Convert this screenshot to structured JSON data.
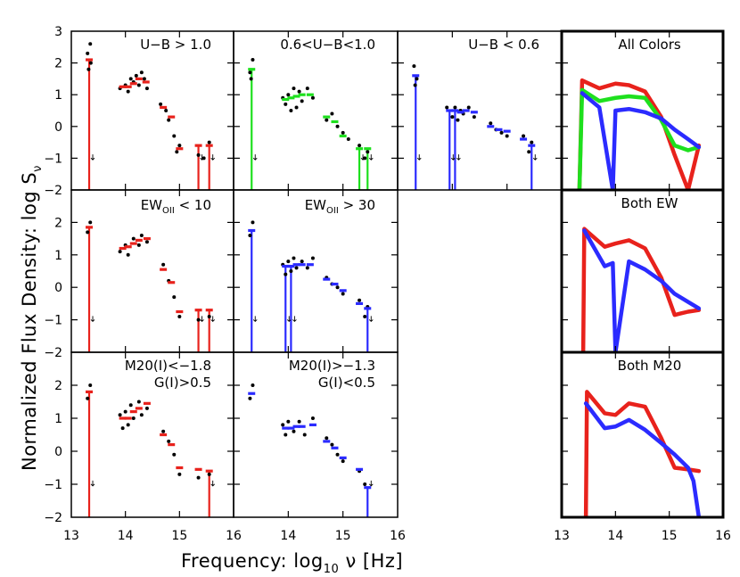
{
  "chart_data": {
    "type": "scatter",
    "x_label_prefix": "Frequency: log",
    "x_label_sub": "10",
    "x_label_mid": " ν ",
    "x_label_unit": "[Hz]",
    "y_label_main": "Normalized Flux Density: log S",
    "y_label_sub": "ν",
    "xlim": [
      13,
      16
    ],
    "ylim": [
      -2,
      3
    ],
    "x_ticks": [
      "13",
      "14",
      "15",
      "16"
    ],
    "y_ticks": [
      "3",
      "2",
      "1",
      "0",
      "−1",
      "−2"
    ],
    "colors": {
      "red": "#e8221c",
      "green": "#1ee01e",
      "blue": "#2b2bff",
      "black": "#000000"
    },
    "panels": [
      {
        "id": "ub-gt-1",
        "title_lines": [
          "U−B > 1.0"
        ],
        "color": "red",
        "sed": [
          [
            13.33,
            2.1
          ],
          [
            13.95,
            1.25
          ],
          [
            14.05,
            1.25
          ],
          [
            14.15,
            1.35
          ],
          [
            14.25,
            1.5
          ],
          [
            14.38,
            1.4
          ],
          [
            14.7,
            0.6
          ],
          [
            14.85,
            0.3
          ],
          [
            15.0,
            -0.7
          ],
          [
            15.35,
            -0.6
          ],
          [
            15.55,
            -0.6
          ]
        ],
        "drops": [
          13.33,
          15.35,
          15.55
        ],
        "dots": [
          [
            13.3,
            2.3
          ],
          [
            13.35,
            2.6
          ],
          [
            13.32,
            1.8
          ],
          [
            13.36,
            2.0
          ],
          [
            13.9,
            1.2
          ],
          [
            14.0,
            1.3
          ],
          [
            14.05,
            1.1
          ],
          [
            14.1,
            1.5
          ],
          [
            14.15,
            1.4
          ],
          [
            14.2,
            1.6
          ],
          [
            14.25,
            1.3
          ],
          [
            14.3,
            1.7
          ],
          [
            14.35,
            1.5
          ],
          [
            14.4,
            1.2
          ],
          [
            14.65,
            0.7
          ],
          [
            14.75,
            0.5
          ],
          [
            14.8,
            0.2
          ],
          [
            14.9,
            -0.3
          ],
          [
            14.95,
            -0.8
          ],
          [
            15.0,
            -0.6
          ],
          [
            15.35,
            -0.9
          ],
          [
            15.45,
            -1.0
          ],
          [
            15.55,
            -0.5
          ]
        ]
      },
      {
        "id": "ub-mid",
        "title_lines": [
          "0.6<U−B<1.0"
        ],
        "color": "green",
        "sed": [
          [
            13.33,
            1.8
          ],
          [
            13.95,
            0.85
          ],
          [
            14.05,
            0.9
          ],
          [
            14.15,
            0.95
          ],
          [
            14.25,
            1.0
          ],
          [
            14.4,
            1.0
          ],
          [
            14.7,
            0.3
          ],
          [
            14.85,
            0.15
          ],
          [
            15.0,
            -0.3
          ],
          [
            15.3,
            -0.7
          ],
          [
            15.45,
            -0.7
          ]
        ],
        "drops": [
          13.33,
          15.3,
          15.45
        ],
        "dots": [
          [
            13.3,
            1.7
          ],
          [
            13.35,
            2.1
          ],
          [
            13.32,
            1.5
          ],
          [
            13.9,
            0.9
          ],
          [
            13.95,
            0.7
          ],
          [
            14.0,
            1.0
          ],
          [
            14.05,
            0.5
          ],
          [
            14.1,
            1.2
          ],
          [
            14.15,
            0.6
          ],
          [
            14.2,
            1.1
          ],
          [
            14.25,
            0.8
          ],
          [
            14.35,
            1.2
          ],
          [
            14.45,
            0.9
          ],
          [
            14.7,
            0.2
          ],
          [
            14.8,
            0.4
          ],
          [
            14.9,
            0.0
          ],
          [
            15.0,
            -0.2
          ],
          [
            15.1,
            -0.4
          ],
          [
            15.3,
            -0.6
          ],
          [
            15.4,
            -1.0
          ],
          [
            15.45,
            -0.8
          ]
        ]
      },
      {
        "id": "ub-lt-06",
        "title_lines": [
          "U−B < 0.6"
        ],
        "color": "blue",
        "sed": [
          [
            13.33,
            1.6
          ],
          [
            13.95,
            0.5
          ],
          [
            14.05,
            0.5
          ],
          [
            14.15,
            0.45
          ],
          [
            14.25,
            0.5
          ],
          [
            14.4,
            0.45
          ],
          [
            14.7,
            0.0
          ],
          [
            14.85,
            -0.1
          ],
          [
            15.0,
            -0.15
          ],
          [
            15.3,
            -0.4
          ],
          [
            15.45,
            -0.6
          ]
        ],
        "drops": [
          13.33,
          13.95,
          14.05,
          15.45
        ],
        "dots": [
          [
            13.3,
            1.9
          ],
          [
            13.35,
            1.5
          ],
          [
            13.32,
            1.3
          ],
          [
            13.9,
            0.6
          ],
          [
            14.0,
            0.3
          ],
          [
            14.05,
            0.6
          ],
          [
            14.1,
            0.2
          ],
          [
            14.15,
            0.5
          ],
          [
            14.2,
            0.4
          ],
          [
            14.3,
            0.6
          ],
          [
            14.4,
            0.3
          ],
          [
            14.7,
            0.1
          ],
          [
            14.8,
            -0.1
          ],
          [
            14.9,
            -0.2
          ],
          [
            15.0,
            -0.3
          ],
          [
            15.3,
            -0.3
          ],
          [
            15.4,
            -0.8
          ],
          [
            15.45,
            -0.5
          ]
        ]
      },
      {
        "id": "ew-lt-10",
        "title_lines": [
          "EW_OII < 10"
        ],
        "title_base": "EW",
        "title_sub": "OII",
        "title_rest": " < 10",
        "color": "red",
        "sed": [
          [
            13.33,
            1.85
          ],
          [
            13.95,
            1.2
          ],
          [
            14.05,
            1.25
          ],
          [
            14.15,
            1.35
          ],
          [
            14.25,
            1.45
          ],
          [
            14.4,
            1.5
          ],
          [
            14.7,
            0.55
          ],
          [
            14.85,
            0.15
          ],
          [
            15.0,
            -0.75
          ],
          [
            15.35,
            -0.7
          ],
          [
            15.55,
            -0.7
          ]
        ],
        "drops": [
          13.33,
          15.35,
          15.55
        ],
        "dots": [
          [
            13.3,
            1.7
          ],
          [
            13.35,
            2.0
          ],
          [
            13.9,
            1.1
          ],
          [
            14.0,
            1.3
          ],
          [
            14.05,
            1.0
          ],
          [
            14.15,
            1.5
          ],
          [
            14.25,
            1.3
          ],
          [
            14.3,
            1.6
          ],
          [
            14.4,
            1.4
          ],
          [
            14.7,
            0.7
          ],
          [
            14.8,
            0.2
          ],
          [
            14.9,
            -0.3
          ],
          [
            15.0,
            -0.9
          ],
          [
            15.35,
            -1.0
          ],
          [
            15.55,
            -0.9
          ]
        ]
      },
      {
        "id": "ew-gt-30",
        "title_lines": [
          "EW_OII > 30"
        ],
        "title_base": "EW",
        "title_sub": "OII",
        "title_rest": " > 30",
        "color": "blue",
        "sed": [
          [
            13.33,
            1.75
          ],
          [
            13.95,
            0.65
          ],
          [
            14.05,
            0.65
          ],
          [
            14.15,
            0.7
          ],
          [
            14.25,
            0.7
          ],
          [
            14.4,
            0.7
          ],
          [
            14.7,
            0.25
          ],
          [
            14.85,
            0.1
          ],
          [
            15.0,
            -0.1
          ],
          [
            15.3,
            -0.5
          ],
          [
            15.45,
            -0.65
          ]
        ],
        "drops": [
          13.33,
          13.95,
          14.05,
          15.45
        ],
        "dots": [
          [
            13.3,
            1.6
          ],
          [
            13.35,
            2.0
          ],
          [
            13.9,
            0.7
          ],
          [
            13.95,
            0.4
          ],
          [
            14.0,
            0.8
          ],
          [
            14.05,
            0.5
          ],
          [
            14.1,
            0.9
          ],
          [
            14.15,
            0.6
          ],
          [
            14.25,
            0.8
          ],
          [
            14.35,
            0.6
          ],
          [
            14.45,
            0.9
          ],
          [
            14.7,
            0.3
          ],
          [
            14.8,
            0.1
          ],
          [
            14.9,
            0.0
          ],
          [
            15.0,
            -0.2
          ],
          [
            15.3,
            -0.4
          ],
          [
            15.4,
            -0.9
          ],
          [
            15.45,
            -0.6
          ]
        ]
      },
      {
        "id": "m20-lt",
        "title_lines": [
          "M20(I)<−1.8",
          "G(I)>0.5"
        ],
        "color": "red",
        "sed": [
          [
            13.33,
            1.8
          ],
          [
            13.95,
            1.0
          ],
          [
            14.05,
            1.0
          ],
          [
            14.15,
            1.2
          ],
          [
            14.25,
            1.3
          ],
          [
            14.4,
            1.45
          ],
          [
            14.7,
            0.5
          ],
          [
            14.85,
            0.2
          ],
          [
            15.0,
            -0.5
          ],
          [
            15.35,
            -0.55
          ],
          [
            15.55,
            -0.6
          ]
        ],
        "drops": [
          13.33,
          15.55
        ],
        "dots": [
          [
            13.3,
            1.6
          ],
          [
            13.35,
            2.0
          ],
          [
            13.9,
            1.1
          ],
          [
            13.95,
            0.7
          ],
          [
            14.0,
            1.2
          ],
          [
            14.05,
            0.8
          ],
          [
            14.1,
            1.4
          ],
          [
            14.15,
            1.0
          ],
          [
            14.25,
            1.5
          ],
          [
            14.3,
            1.1
          ],
          [
            14.4,
            1.3
          ],
          [
            14.7,
            0.6
          ],
          [
            14.8,
            0.3
          ],
          [
            14.9,
            -0.1
          ],
          [
            15.0,
            -0.7
          ],
          [
            15.35,
            -0.8
          ],
          [
            15.55,
            -0.7
          ]
        ]
      },
      {
        "id": "m20-gt",
        "title_lines": [
          "M20(I)>−1.3",
          "G(I)<0.5"
        ],
        "color": "blue",
        "sed": [
          [
            13.33,
            1.75
          ],
          [
            13.95,
            0.7
          ],
          [
            14.05,
            0.7
          ],
          [
            14.15,
            0.75
          ],
          [
            14.25,
            0.75
          ],
          [
            14.45,
            0.8
          ],
          [
            14.7,
            0.3
          ],
          [
            14.85,
            0.1
          ],
          [
            15.0,
            -0.2
          ],
          [
            15.3,
            -0.55
          ],
          [
            15.45,
            -1.1
          ]
        ],
        "drops": [
          15.45
        ],
        "dots": [
          [
            13.3,
            1.6
          ],
          [
            13.35,
            2.0
          ],
          [
            13.9,
            0.8
          ],
          [
            13.95,
            0.5
          ],
          [
            14.0,
            0.9
          ],
          [
            14.1,
            0.6
          ],
          [
            14.2,
            0.9
          ],
          [
            14.3,
            0.5
          ],
          [
            14.45,
            1.0
          ],
          [
            14.7,
            0.4
          ],
          [
            14.8,
            0.2
          ],
          [
            14.9,
            -0.1
          ],
          [
            15.0,
            -0.3
          ],
          [
            15.3,
            -0.6
          ],
          [
            15.4,
            -1.0
          ]
        ]
      },
      {
        "id": "all-colors",
        "title_lines": [
          "All Colors"
        ],
        "overlay": true,
        "series": [
          {
            "name": "U−B > 1.0",
            "color": "red",
            "x": [
              13.33,
              13.38,
              13.7,
              14.0,
              14.25,
              14.55,
              14.85,
              15.1,
              15.35,
              15.55
            ],
            "y": [
              -2,
              1.45,
              1.2,
              1.35,
              1.3,
              1.1,
              0.3,
              -0.9,
              -2,
              -0.6
            ]
          },
          {
            "name": "0.6<U−B<1.0",
            "color": "green",
            "x": [
              13.33,
              13.38,
              13.7,
              14.0,
              14.25,
              14.55,
              14.85,
              15.1,
              15.35,
              15.55
            ],
            "y": [
              -2,
              1.15,
              0.8,
              0.9,
              0.95,
              0.9,
              0.2,
              -0.6,
              -0.75,
              -0.65
            ]
          },
          {
            "name": "U−B < 0.6",
            "color": "blue",
            "x": [
              13.38,
              13.7,
              13.95,
              14.0,
              14.25,
              14.55,
              14.85,
              15.1,
              15.35,
              15.55
            ],
            "y": [
              1.05,
              0.6,
              -2,
              0.5,
              0.55,
              0.45,
              0.25,
              -0.1,
              -0.4,
              -0.65
            ]
          }
        ]
      },
      {
        "id": "both-ew",
        "title_lines": [
          "Both EW"
        ],
        "overlay": true,
        "series": [
          {
            "name": "EW_OII < 10",
            "color": "red",
            "x": [
              13.4,
              13.42,
              13.8,
              14.0,
              14.25,
              14.55,
              14.85,
              15.1,
              15.35,
              15.55
            ],
            "y": [
              -2,
              1.8,
              1.25,
              1.35,
              1.45,
              1.2,
              0.3,
              -0.85,
              -0.75,
              -0.7
            ]
          },
          {
            "name": "EW_OII > 30",
            "color": "blue",
            "x": [
              13.42,
              13.8,
              13.95,
              14.0,
              14.25,
              14.55,
              14.85,
              15.1,
              15.35,
              15.55
            ],
            "y": [
              1.75,
              0.65,
              0.75,
              -2,
              0.8,
              0.55,
              0.2,
              -0.2,
              -0.45,
              -0.65
            ]
          }
        ]
      },
      {
        "id": "both-m20",
        "title_lines": [
          "Both M20"
        ],
        "overlay": true,
        "series": [
          {
            "name": "M20 < −1.8",
            "color": "red",
            "x": [
              13.45,
              13.47,
              13.8,
              14.0,
              14.25,
              14.55,
              14.85,
              15.1,
              15.35,
              15.55
            ],
            "y": [
              -2,
              1.8,
              1.15,
              1.1,
              1.45,
              1.35,
              0.4,
              -0.5,
              -0.55,
              -0.6
            ]
          },
          {
            "name": "M20 > −1.3",
            "color": "blue",
            "x": [
              13.45,
              13.8,
              14.0,
              14.25,
              14.55,
              14.85,
              15.1,
              15.35,
              15.45,
              15.55
            ],
            "y": [
              1.45,
              0.7,
              0.75,
              0.95,
              0.65,
              0.25,
              -0.1,
              -0.5,
              -0.9,
              -2
            ]
          }
        ]
      }
    ]
  }
}
